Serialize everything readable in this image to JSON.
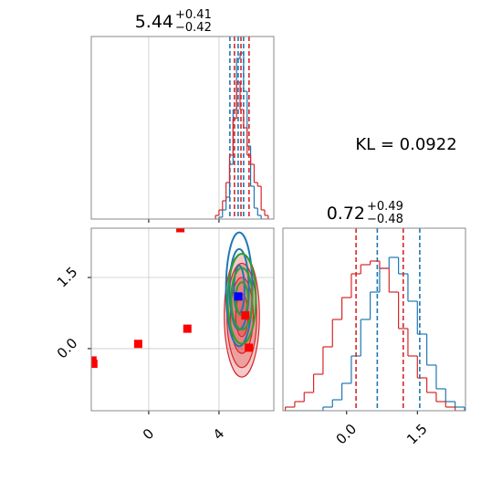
{
  "annotation": "KL = 0.0922",
  "chart_data": [
    {
      "type": "histogram",
      "title": {
        "value": "5.44",
        "upper": "+0.41",
        "lower": "−0.42"
      },
      "bins": [
        3.8,
        4.0,
        4.2,
        4.4,
        4.6,
        4.8,
        5.0,
        5.2,
        5.4,
        5.6,
        5.8,
        6.0,
        6.2,
        6.4,
        6.6,
        6.8
      ],
      "series": [
        {
          "color": "#1f77b4",
          "values": [
            0,
            0.01,
            0.05,
            0.12,
            0.3,
            0.6,
            0.88,
            0.91,
            0.7,
            0.4,
            0.18,
            0.06,
            0.02,
            0,
            0
          ],
          "quantiles": [
            4.62,
            5.09,
            5.4
          ]
        },
        {
          "color": "#d62728",
          "values": [
            0.02,
            0.05,
            0.1,
            0.2,
            0.35,
            0.55,
            0.75,
            0.6,
            0.5,
            0.35,
            0.3,
            0.2,
            0.18,
            0.05,
            0.02
          ],
          "quantiles": [
            4.88,
            5.25,
            5.71
          ]
        }
      ],
      "xlim": [
        -3.27,
        7.12
      ],
      "ylim": [
        0,
        1
      ],
      "xticks": [
        0,
        4
      ],
      "xtick_labels": false,
      "grid": true
    },
    {
      "type": "scatter",
      "contours": [
        {
          "color": "#d62728",
          "filled": true,
          "cx": 5.3,
          "cy": 0.7,
          "rx": [
            1.0,
            0.85,
            0.65,
            0.35
          ],
          "ry": [
            1.3,
            1.1,
            0.8,
            0.45
          ]
        },
        {
          "color": "#1f77b4",
          "filled": false,
          "cx": 5.15,
          "cy": 1.25,
          "rx": [
            0.75,
            0.55,
            0.3
          ],
          "ry": [
            1.2,
            0.85,
            0.5
          ]
        },
        {
          "color": "#2ca02c",
          "filled": false,
          "cx": 5.3,
          "cy": 1.05,
          "rx": [
            0.8,
            0.6,
            0.35
          ],
          "ry": [
            0.95,
            0.65,
            0.35
          ]
        }
      ],
      "series": [
        {
          "color": "#ff0000",
          "x": [
            -3.2,
            -3.15,
            -0.6,
            2.2,
            1.8,
            5.7,
            5.5
          ],
          "values": [
            -0.25,
            -0.32,
            0.1,
            0.42,
            2.54,
            0.02,
            0.7
          ]
        },
        {
          "color": "#0000ff",
          "x": [
            5.1
          ],
          "values": [
            1.1
          ]
        }
      ],
      "xlim": [
        -3.27,
        7.12
      ],
      "ylim": [
        -1.31,
        2.54
      ],
      "xticks": [
        0,
        4
      ],
      "yticks": [
        {
          "value": 0,
          "label": "0.0"
        },
        {
          "value": 1.5,
          "label": "1.5"
        }
      ],
      "grid": true
    },
    {
      "type": "histogram",
      "title": {
        "value": "0.72",
        "upper": "+0.49",
        "lower": "−0.48"
      },
      "bins": [
        -1.3,
        -1.1,
        -0.9,
        -0.7,
        -0.5,
        -0.3,
        -0.1,
        0.1,
        0.3,
        0.5,
        0.7,
        0.9,
        1.1,
        1.3,
        1.5,
        1.7,
        1.9,
        2.1,
        2.3,
        2.5
      ],
      "series": [
        {
          "color": "#1f77b4",
          "values": [
            0,
            0,
            0,
            0,
            0.02,
            0.06,
            0.15,
            0.3,
            0.5,
            0.65,
            0.78,
            0.84,
            0.75,
            0.6,
            0.42,
            0.25,
            0.12,
            0.05,
            0.02
          ],
          "quantiles": [
            0.65,
            1.55
          ]
        },
        {
          "color": "#d62728",
          "values": [
            0.02,
            0.05,
            0.1,
            0.2,
            0.35,
            0.5,
            0.62,
            0.75,
            0.8,
            0.82,
            0.78,
            0.65,
            0.45,
            0.3,
            0.18,
            0.1,
            0.05,
            0.02,
            0
          ],
          "quantiles": [
            0.2,
            1.2
          ]
        }
      ],
      "xlim": [
        -1.35,
        2.52
      ],
      "ylim": [
        0,
        1
      ],
      "xticks": [
        {
          "value": 0,
          "label": "0.0"
        },
        {
          "value": 1.5,
          "label": "1.5"
        }
      ],
      "xtick_labels": true,
      "grid": false
    }
  ]
}
